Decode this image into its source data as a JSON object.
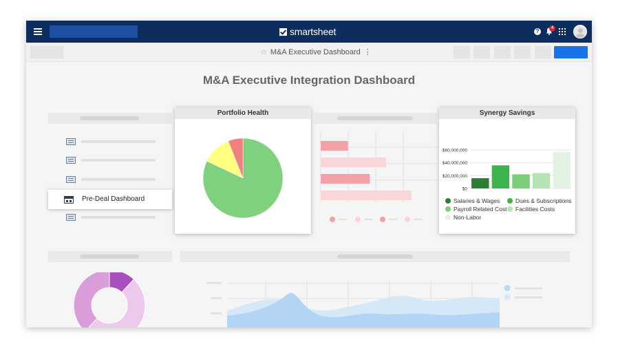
{
  "header": {
    "brand": "smartsheet",
    "notification_count": "4",
    "help_label": "?"
  },
  "toolbar": {
    "sheet_title": "M&A Executive Dashboard"
  },
  "dashboard": {
    "title": "M&A Executive Integration Dashboard"
  },
  "sidebar": {
    "pre_deal_label": "Pre-Deal Dashboard"
  },
  "portfolio_health": {
    "title": "Portfolio Health",
    "chart_data": {
      "type": "pie",
      "slices": [
        {
          "value": 82,
          "color": "#7fd17f"
        },
        {
          "value": 12,
          "color": "#ffff80"
        },
        {
          "value": 6,
          "color": "#f08080"
        }
      ]
    }
  },
  "synergy_savings": {
    "title": "Synergy Savings",
    "chart_data": {
      "type": "bar",
      "y_ticks": [
        "$60,000,000",
        "$40,000,000",
        "$20,000,000",
        "$0"
      ],
      "ylim": [
        0,
        60000000
      ],
      "series": [
        {
          "name": "Salaries & Wages",
          "value": 16000000,
          "color": "#2e7d32"
        },
        {
          "name": "Dues & Subscriptions",
          "value": 36000000,
          "color": "#3cb44b"
        },
        {
          "name": "Payroll Related Cost",
          "value": 22000000,
          "color": "#7bcf7b"
        },
        {
          "name": "Facilities Costs",
          "value": 24000000,
          "color": "#b5e3b5"
        },
        {
          "name": "Non-Labor",
          "value": 57000000,
          "color": "#e3f3e3"
        }
      ]
    }
  },
  "faded_bar_chart": {
    "chart_data": {
      "type": "bar",
      "values": [
        30,
        72,
        54,
        100
      ],
      "colors": [
        "#f3a1a6",
        "#fbd6d9",
        "#f3a1a6",
        "#fbd6d9"
      ]
    }
  },
  "donut_chart": {
    "chart_data": {
      "type": "pie",
      "slices": [
        {
          "value": 12,
          "color": "#a94fbf"
        },
        {
          "value": 50,
          "color": "#ecc8ec"
        },
        {
          "value": 38,
          "color": "#d99dd9"
        }
      ]
    }
  },
  "colors": {
    "topbar": "#0d2d5e",
    "primary_button": "#1a72e8"
  }
}
